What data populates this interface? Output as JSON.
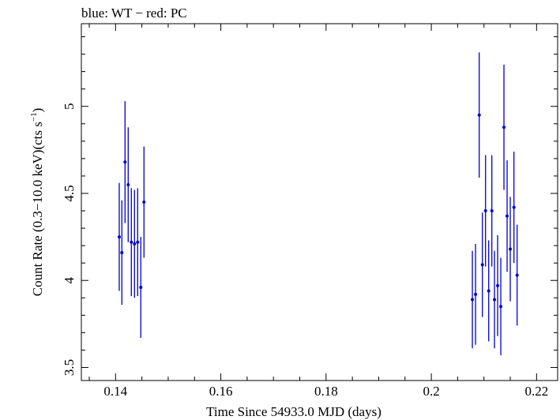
{
  "chart_data": {
    "type": "scatter",
    "title": "blue: WT − red: PC",
    "xlabel": "Time Since 54933.0 MJD (days)",
    "ylabel": "Count Rate (0.3−10.0 keV)(cts s",
    "ylabel_sup": "−1",
    "ylabel_tail": ")",
    "xlim": [
      0.1335,
      0.224
    ],
    "ylim": [
      3.425,
      5.475
    ],
    "xticks": [
      0.14,
      0.16,
      0.18,
      0.2,
      0.22
    ],
    "xtick_labels": [
      "0.14",
      "0.16",
      "0.18",
      "0.2",
      "0.22"
    ],
    "yticks": [
      3.5,
      4,
      4.5,
      5
    ],
    "ytick_labels": [
      "3.5",
      "4",
      "4.5",
      "5"
    ],
    "grid": false,
    "series": [
      {
        "color": "#0000cc",
        "points": [
          {
            "x": 0.1407,
            "y": 4.25,
            "err": 0.31
          },
          {
            "x": 0.1412,
            "y": 4.16,
            "err": 0.3
          },
          {
            "x": 0.1418,
            "y": 4.68,
            "err": 0.35
          },
          {
            "x": 0.1424,
            "y": 4.55,
            "err": 0.33
          },
          {
            "x": 0.143,
            "y": 4.22,
            "err": 0.31
          },
          {
            "x": 0.1436,
            "y": 4.21,
            "err": 0.31
          },
          {
            "x": 0.1442,
            "y": 4.22,
            "err": 0.31
          },
          {
            "x": 0.1448,
            "y": 3.96,
            "err": 0.29
          },
          {
            "x": 0.1454,
            "y": 4.45,
            "err": 0.32
          },
          {
            "x": 0.2078,
            "y": 3.89,
            "err": 0.28
          },
          {
            "x": 0.2084,
            "y": 3.92,
            "err": 0.29
          },
          {
            "x": 0.2091,
            "y": 4.95,
            "err": 0.36
          },
          {
            "x": 0.2097,
            "y": 4.09,
            "err": 0.3
          },
          {
            "x": 0.2103,
            "y": 4.4,
            "err": 0.32
          },
          {
            "x": 0.2109,
            "y": 3.94,
            "err": 0.29
          },
          {
            "x": 0.2115,
            "y": 4.4,
            "err": 0.32
          },
          {
            "x": 0.212,
            "y": 3.89,
            "err": 0.28
          },
          {
            "x": 0.2126,
            "y": 3.97,
            "err": 0.29
          },
          {
            "x": 0.2132,
            "y": 3.85,
            "err": 0.28
          },
          {
            "x": 0.2138,
            "y": 4.88,
            "err": 0.36
          },
          {
            "x": 0.2144,
            "y": 4.37,
            "err": 0.32
          },
          {
            "x": 0.215,
            "y": 4.18,
            "err": 0.3
          },
          {
            "x": 0.2157,
            "y": 4.42,
            "err": 0.32
          },
          {
            "x": 0.2163,
            "y": 4.03,
            "err": 0.29
          }
        ]
      }
    ]
  }
}
